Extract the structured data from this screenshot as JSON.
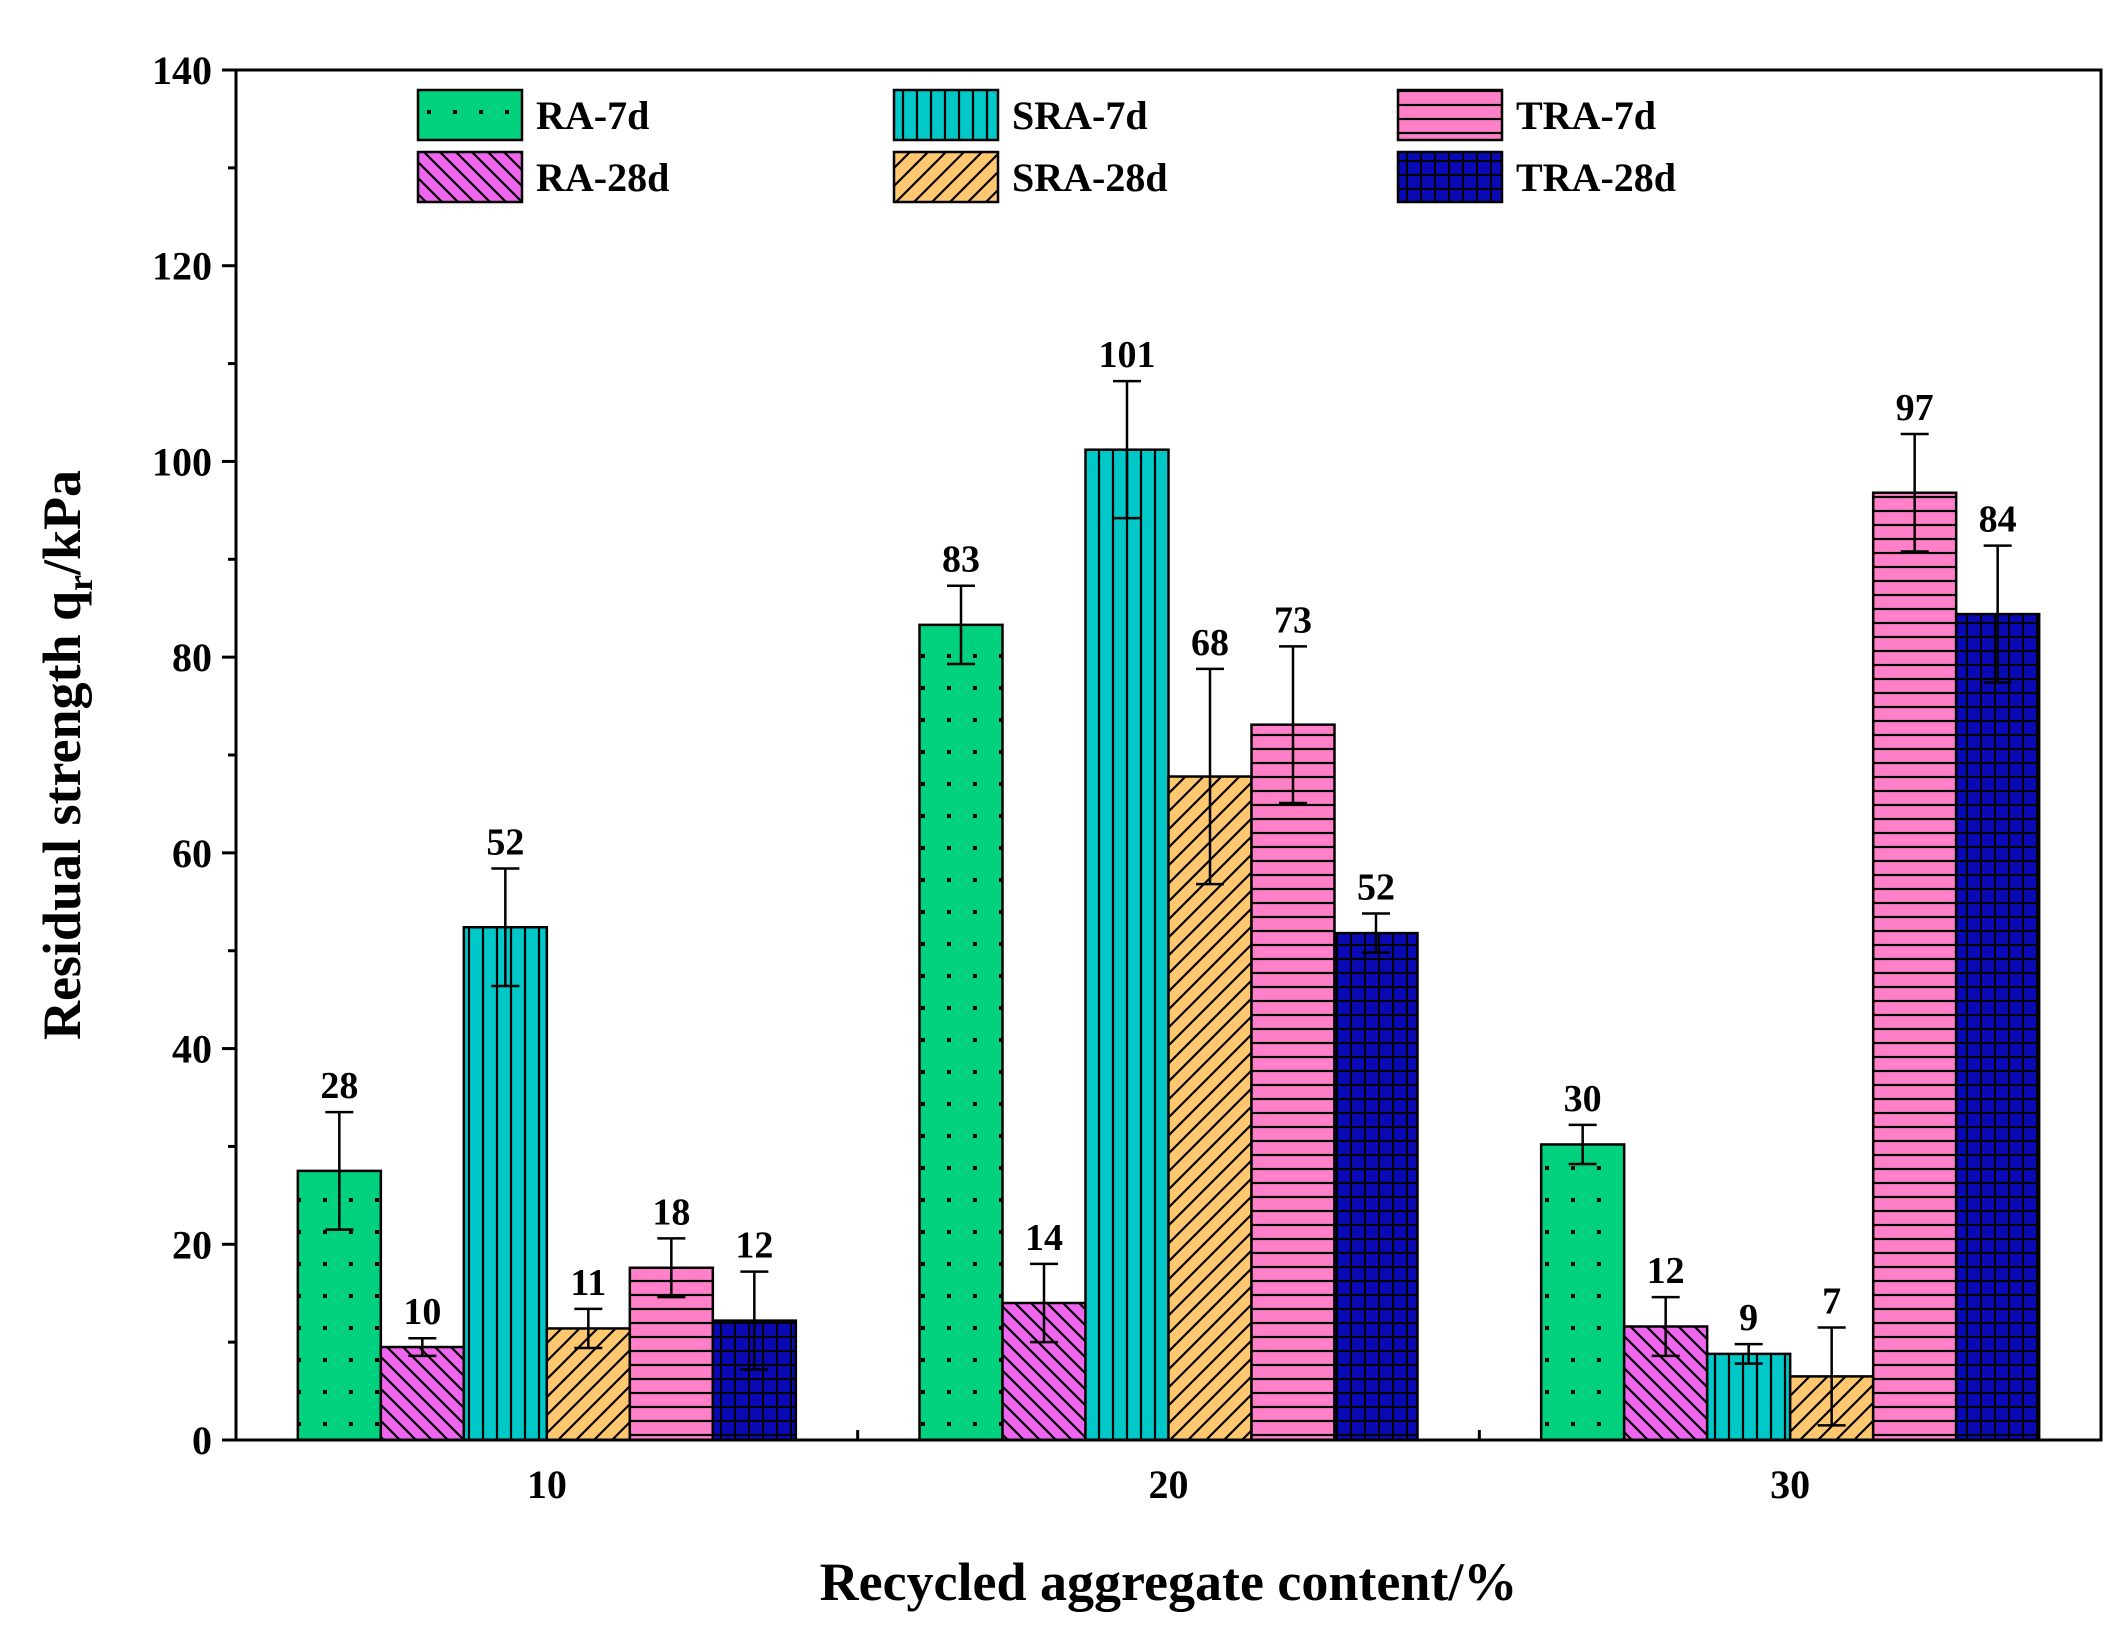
{
  "chart_data": {
    "type": "bar",
    "title": "",
    "xlabel": "Recycled aggregate content/%",
    "ylabel_main": "Residual strength q",
    "ylabel_sub": "r",
    "ylabel_unit": "/kPa",
    "ylim": [
      0,
      140
    ],
    "yticks": [
      0,
      20,
      40,
      60,
      80,
      100,
      120,
      140
    ],
    "categories": [
      "10",
      "20",
      "30"
    ],
    "legend_position": "top",
    "series": [
      {
        "name": "RA-7d",
        "color": "#00D17F",
        "pattern": "dots",
        "values": [
          27.5,
          83.3,
          30.2
        ],
        "errors": [
          6.0,
          4.0,
          2.0
        ],
        "labels": [
          "28",
          "83",
          "30"
        ]
      },
      {
        "name": "RA-28d",
        "color": "#EE66EE",
        "pattern": "backdiag",
        "values": [
          9.5,
          14.0,
          11.6
        ],
        "errors": [
          0.9,
          4.0,
          3.0
        ],
        "labels": [
          "10",
          "14",
          "12"
        ]
      },
      {
        "name": "SRA-7d",
        "color": "#00C8C8",
        "pattern": "vertical",
        "values": [
          52.4,
          101.2,
          8.8
        ],
        "errors": [
          6.0,
          7.0,
          1.0
        ],
        "labels": [
          "52",
          "101",
          "9"
        ]
      },
      {
        "name": "SRA-28d",
        "color": "#FFC870",
        "pattern": "forwarddiag",
        "values": [
          11.4,
          67.8,
          6.5
        ],
        "errors": [
          2.0,
          11.0,
          5.0
        ],
        "labels": [
          "11",
          "68",
          "7"
        ]
      },
      {
        "name": "TRA-7d",
        "color": "#FF80C8",
        "pattern": "horizontal",
        "values": [
          17.6,
          73.1,
          96.8
        ],
        "errors": [
          3.0,
          8.0,
          6.0
        ],
        "labels": [
          "18",
          "73",
          "97"
        ]
      },
      {
        "name": "TRA-28d",
        "color": "#0A0AB4",
        "pattern": "grid",
        "values": [
          12.2,
          51.8,
          84.4
        ],
        "errors": [
          5.0,
          2.0,
          7.0
        ],
        "labels": [
          "12",
          "52",
          "84"
        ]
      }
    ]
  }
}
